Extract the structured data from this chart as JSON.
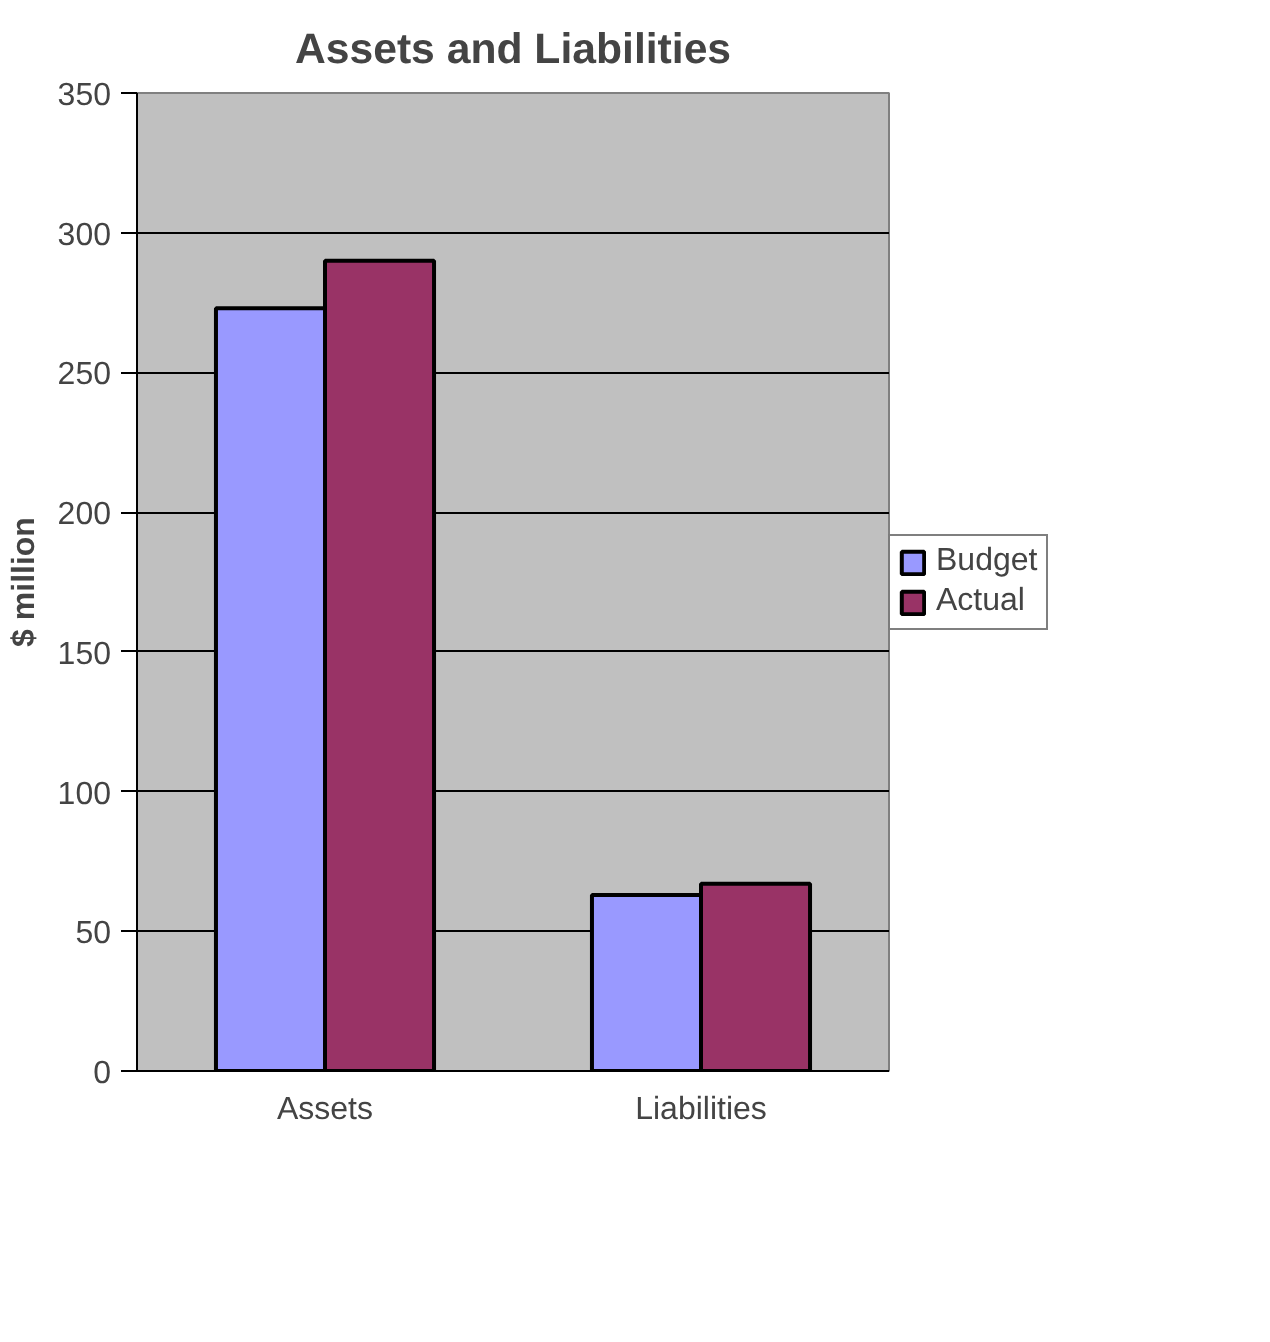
{
  "chart_data": {
    "type": "bar",
    "title": "Assets and Liabilities",
    "ylabel": "$ million",
    "categories": [
      "Assets",
      "Liabilities"
    ],
    "series": [
      {
        "name": "Budget",
        "color": "#9999ff",
        "values": [
          273,
          63
        ]
      },
      {
        "name": "Actual",
        "color": "#993366",
        "values": [
          290,
          67
        ]
      }
    ],
    "ylim": [
      0,
      350
    ],
    "yticks": [
      0,
      50,
      100,
      150,
      200,
      250,
      300,
      350
    ],
    "grid": "y",
    "legend": "right"
  }
}
